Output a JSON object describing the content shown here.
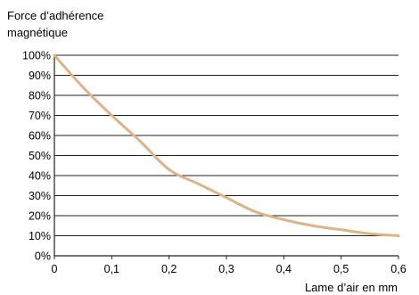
{
  "chart_data": {
    "type": "line",
    "ylabel_lines": [
      "Force d’adhérence",
      "magnétique"
    ],
    "xlabel": "Lame d’air en mm",
    "xlim": [
      0,
      0.6
    ],
    "ylim": [
      0,
      100
    ],
    "x_ticks": [
      0,
      0.1,
      0.2,
      0.3,
      0.4,
      0.5,
      0.6
    ],
    "x_tick_labels": [
      "0",
      "0,1",
      "0,2",
      "0,3",
      "0,4",
      "0,5",
      "0,6"
    ],
    "y_ticks": [
      0,
      10,
      20,
      30,
      40,
      50,
      60,
      70,
      80,
      90,
      100
    ],
    "y_tick_labels": [
      "0%",
      "10%",
      "20%",
      "30%",
      "40%",
      "50%",
      "60%",
      "70%",
      "80%",
      "90%",
      "100%"
    ],
    "grid": "horizontal",
    "line_color": "#dcb487",
    "series": [
      {
        "x": [
          0,
          0.05,
          0.1,
          0.15,
          0.2,
          0.25,
          0.3,
          0.35,
          0.4,
          0.45,
          0.5,
          0.55,
          0.6
        ],
        "values": [
          100,
          84,
          70,
          57,
          43,
          36,
          29,
          22,
          18,
          15,
          13,
          11,
          10
        ]
      }
    ]
  }
}
